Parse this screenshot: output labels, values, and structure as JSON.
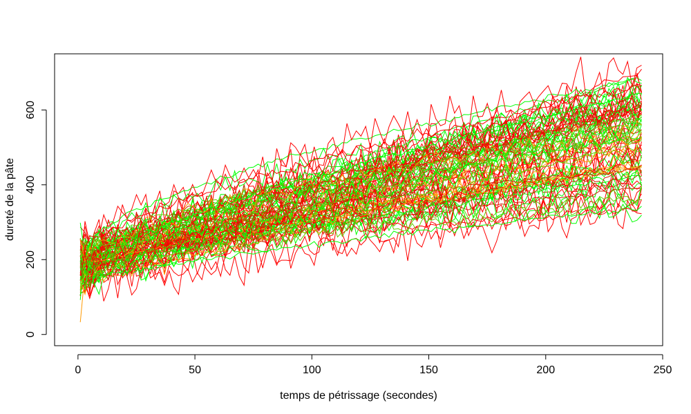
{
  "chart_data": {
    "type": "line",
    "title": "",
    "xlabel": "temps de pétrissage (secondes)",
    "ylabel": "dureté de la pâte",
    "xlim": [
      -10,
      250
    ],
    "ylim": [
      -30,
      750
    ],
    "xticks": [
      0,
      50,
      100,
      150,
      200,
      250
    ],
    "yticks": [
      0,
      200,
      400,
      600
    ],
    "x_range": [
      1,
      241
    ],
    "grid": false,
    "legend": "none",
    "series_colors": [
      "#ff0000",
      "#00ff00",
      "#ff9900",
      "#cc2200",
      "#66cc00"
    ],
    "series_groups": [
      {
        "color": "#ff0000",
        "count": 30,
        "start": [
          130,
          230
        ],
        "end": [
          290,
          730
        ],
        "noise": 40
      },
      {
        "color": "#00ff00",
        "count": 30,
        "start": [
          120,
          240
        ],
        "end": [
          320,
          690
        ],
        "noise": 25
      },
      {
        "color": "#ff9900",
        "count": 10,
        "start": [
          130,
          220
        ],
        "end": [
          440,
          580
        ],
        "noise": 22
      },
      {
        "color": "#cc2200",
        "count": 10,
        "start": [
          140,
          230
        ],
        "end": [
          380,
          640
        ],
        "noise": 25
      },
      {
        "color": "#66cc00",
        "count": 10,
        "start": [
          140,
          230
        ],
        "end": [
          350,
          640
        ],
        "noise": 20
      }
    ]
  }
}
